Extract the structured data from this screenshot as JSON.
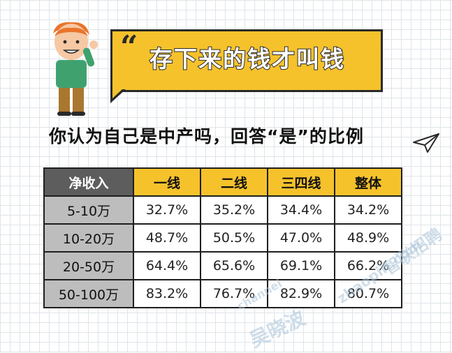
{
  "bubble": {
    "quote_mark": "“",
    "title": "存下来的钱才叫钱"
  },
  "heading": "你认为自己是中产吗，回答“是”的比例",
  "table": {
    "header": [
      "净收入",
      "一线",
      "二线",
      "三四线",
      "整体"
    ],
    "rows": [
      [
        "5-10万",
        "32.7%",
        "35.2%",
        "34.4%",
        "34.2%"
      ],
      [
        "10-20万",
        "48.7%",
        "50.5%",
        "47.0%",
        "48.9%"
      ],
      [
        "20-50万",
        "64.4%",
        "65.6%",
        "69.1%",
        "66.2%"
      ],
      [
        "50-100万",
        "83.2%",
        "76.7%",
        "82.9%",
        "80.7%"
      ]
    ]
  },
  "watermarks": {
    "zhaopin_cn": "智联招聘",
    "zhaopin_en": "zhaopin.com",
    "wu_cn": "吴晓波",
    "wu_en": "channel"
  },
  "colors": {
    "accent_yellow": "#f5c22c",
    "header_gray": "#5d5d5d",
    "label_gray": "#bdbdbd",
    "outline": "#1e1e1e"
  },
  "icons": [
    "cartoon-person-icon",
    "paper-plane-icon"
  ]
}
